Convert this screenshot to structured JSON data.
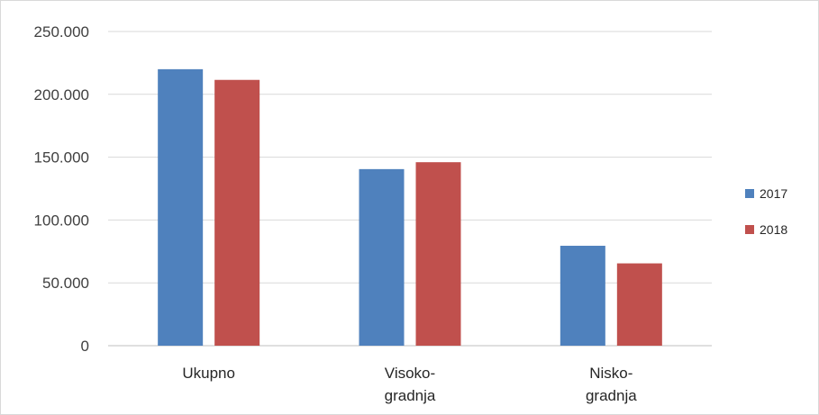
{
  "chart_data": {
    "type": "bar",
    "categories": [
      [
        "Ukupno"
      ],
      [
        "Visoko-",
        "gradnja"
      ],
      [
        "Nisko-",
        "gradnja"
      ]
    ],
    "series": [
      {
        "name": "2017",
        "color": "#4f81bd",
        "values": [
          220000,
          140500,
          79500
        ]
      },
      {
        "name": "2018",
        "color": "#c0504d",
        "values": [
          211500,
          146000,
          65500
        ]
      }
    ],
    "y_ticks": [
      "0",
      "50.000",
      "100.000",
      "150.000",
      "200.000",
      "250.000"
    ],
    "ylim": [
      0,
      250000
    ],
    "grid": true,
    "legend_position": "right"
  }
}
